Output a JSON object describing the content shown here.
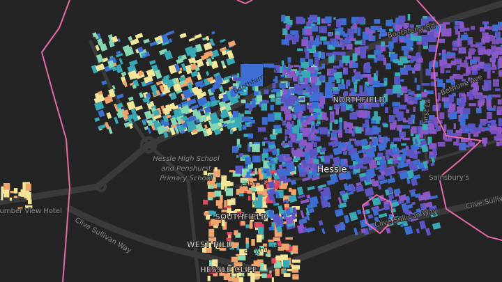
{
  "labels": [
    "Boothferry Rd",
    "Boothferry Rd",
    "NORTHFIELD",
    "First La",
    "Bethune Ave",
    "Hessle High School",
    "and Penshurst",
    "Primary School",
    "Hessle",
    "Sainsbury's",
    "Humber View Hotel",
    "Clive Sullivan Way",
    "Clive Sullivan Way",
    "Clive Sullivan Way",
    "Ferriby Rd",
    "SOUTHFIELD",
    "Southfield",
    "WEST HILL",
    "HESSLE CLIFF"
  ]
}
